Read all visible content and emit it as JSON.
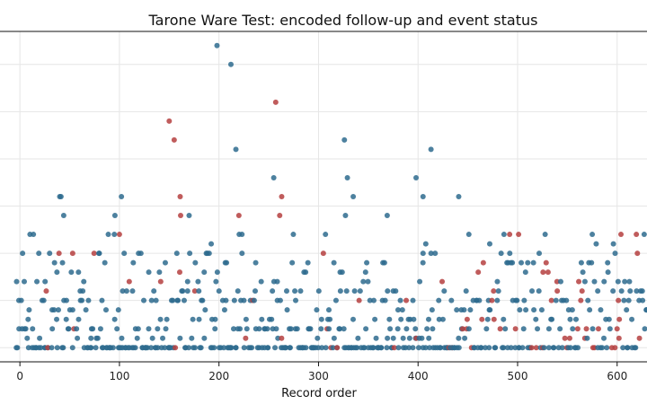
{
  "chart_data": {
    "type": "scatter",
    "title": "Tarone Ware Test: encoded follow-up and event status",
    "xlabel": "Record order",
    "ylabel": "",
    "xlim": [
      -20,
      630
    ],
    "ylim": [
      -0.3,
      6.7
    ],
    "xticks": [
      0,
      100,
      200,
      300,
      400,
      500,
      600
    ],
    "grid": true,
    "status_colors": {
      "0": "#2e6b8e",
      "1": "#b5403f"
    },
    "seed": 1234,
    "n_points": 640,
    "notable_points": [
      {
        "x": 198,
        "y": 6.4,
        "status": 0
      },
      {
        "x": 212,
        "y": 6.0,
        "status": 0
      },
      {
        "x": 150,
        "y": 4.8,
        "status": 1
      },
      {
        "x": 155,
        "y": 4.4,
        "status": 1
      },
      {
        "x": 257,
        "y": 5.2,
        "status": 1
      },
      {
        "x": 217,
        "y": 4.2,
        "status": 0
      },
      {
        "x": 326,
        "y": 4.4,
        "status": 0
      },
      {
        "x": 413,
        "y": 4.2,
        "status": 0
      },
      {
        "x": 255,
        "y": 3.6,
        "status": 0
      },
      {
        "x": 398,
        "y": 3.6,
        "status": 0
      },
      {
        "x": 40,
        "y": 3.2,
        "status": 0
      },
      {
        "x": 44,
        "y": 2.8,
        "status": 0
      },
      {
        "x": 102,
        "y": 3.2,
        "status": 0
      },
      {
        "x": 161,
        "y": 3.2,
        "status": 1
      },
      {
        "x": 170,
        "y": 2.8,
        "status": 0
      },
      {
        "x": 100,
        "y": 2.4,
        "status": 1
      },
      {
        "x": 220,
        "y": 2.8,
        "status": 1
      },
      {
        "x": 263,
        "y": 3.2,
        "status": 1
      },
      {
        "x": 261,
        "y": 2.8,
        "status": 1
      },
      {
        "x": 329,
        "y": 3.6,
        "status": 0
      },
      {
        "x": 405,
        "y": 3.2,
        "status": 0
      },
      {
        "x": 369,
        "y": 2.8,
        "status": 0
      },
      {
        "x": 492,
        "y": 2.4,
        "status": 1
      },
      {
        "x": 501,
        "y": 2.4,
        "status": 1
      },
      {
        "x": 575,
        "y": 2.4,
        "status": 0
      },
      {
        "x": 19,
        "y": 2.0,
        "status": 0
      },
      {
        "x": 472,
        "y": 2.2,
        "status": 0
      }
    ]
  }
}
